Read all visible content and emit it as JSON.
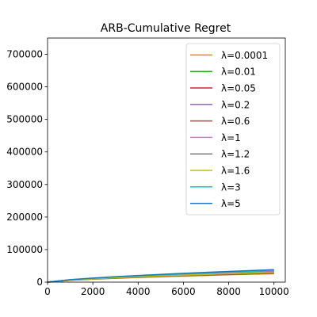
{
  "chart_data": {
    "type": "line",
    "title": "ARB-Cumulative Regret",
    "xlabel": "",
    "ylabel": "",
    "xlim": [
      0,
      10500
    ],
    "ylim": [
      0,
      750000
    ],
    "xticks": [
      0,
      2000,
      4000,
      6000,
      8000,
      10000
    ],
    "yticks": [
      0,
      100000,
      200000,
      300000,
      400000,
      500000,
      600000,
      700000
    ],
    "xtick_labels": [
      "0",
      "2000",
      "4000",
      "6000",
      "8000",
      "10000"
    ],
    "ytick_labels": [
      "0",
      "100000",
      "200000",
      "300000",
      "400000",
      "500000",
      "600000",
      "700000"
    ],
    "legend_position": "upper-right",
    "grid": false,
    "x": [
      0,
      1000,
      2000,
      3000,
      4000,
      5000,
      6000,
      7000,
      8000,
      9000,
      10000
    ],
    "series": [
      {
        "name": "λ=0.0001",
        "color": "#ff7f0e",
        "values": [
          0,
          5500,
          9000,
          11800,
          14200,
          16400,
          18500,
          20500,
          22400,
          24200,
          26000
        ]
      },
      {
        "name": "λ=0.01",
        "color": "#2ca02c",
        "values": [
          0,
          5800,
          9400,
          12300,
          14900,
          17200,
          19400,
          21500,
          23500,
          25400,
          27200
        ]
      },
      {
        "name": "λ=0.05",
        "color": "#d62728",
        "values": [
          0,
          6000,
          9800,
          12900,
          15600,
          18100,
          20400,
          22600,
          24700,
          26700,
          28600
        ]
      },
      {
        "name": "λ=0.2",
        "color": "#9467bd",
        "values": [
          0,
          6300,
          10300,
          13600,
          16500,
          19100,
          21600,
          23900,
          26100,
          28200,
          30200
        ]
      },
      {
        "name": "λ=0.6",
        "color": "#8c564b",
        "values": [
          0,
          6600,
          10800,
          14300,
          17400,
          20200,
          22800,
          25300,
          27600,
          29800,
          31900
        ]
      },
      {
        "name": "λ=1",
        "color": "#e377c2",
        "values": [
          0,
          6900,
          11300,
          15000,
          18300,
          21300,
          24100,
          26700,
          29200,
          31600,
          33800
        ]
      },
      {
        "name": "λ=1.2",
        "color": "#7f7f7f",
        "values": [
          0,
          7100,
          11700,
          15600,
          19000,
          22100,
          25000,
          27700,
          30300,
          32800,
          35100
        ]
      },
      {
        "name": "λ=1.6",
        "color": "#bcbd22",
        "values": [
          0,
          6200,
          10100,
          13400,
          16200,
          18800,
          21300,
          23600,
          25800,
          27900,
          29900
        ]
      },
      {
        "name": "λ=3",
        "color": "#17becf",
        "values": [
          0,
          7300,
          12000,
          16000,
          19500,
          22700,
          25700,
          28500,
          31200,
          33800,
          36200
        ]
      },
      {
        "name": "λ=5",
        "color": "#1f77b4",
        "values": [
          0,
          7600,
          12500,
          16700,
          20400,
          23800,
          27000,
          30000,
          32900,
          35600,
          38200
        ]
      }
    ]
  }
}
